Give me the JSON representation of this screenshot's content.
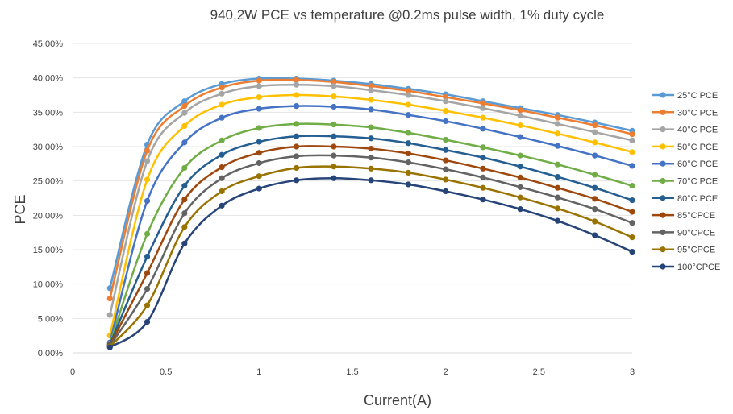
{
  "chart_data": {
    "type": "line",
    "title": "940,2W PCE vs temperature @0.2ms pulse width, 1% duty cycle",
    "xlabel": "Current(A)",
    "ylabel": "PCE",
    "xlim": [
      0,
      3
    ],
    "ylim": [
      0,
      0.45
    ],
    "x_ticks": [
      "0",
      "0.5",
      "1",
      "1.5",
      "2",
      "2.5",
      "3"
    ],
    "y_ticks": [
      "0.00%",
      "5.00%",
      "10.00%",
      "15.00%",
      "20.00%",
      "25.00%",
      "30.00%",
      "35.00%",
      "40.00%",
      "45.00%"
    ],
    "grid": "horizontal",
    "legend_position": "right",
    "x": [
      0.2,
      0.4,
      0.6,
      0.8,
      1.0,
      1.2,
      1.4,
      1.6,
      1.8,
      2.0,
      2.2,
      2.4,
      2.6,
      2.8,
      3.0
    ],
    "series": [
      {
        "name": "25°C PCE",
        "color": "#5b9bd5",
        "values": [
          0.094,
          0.303,
          0.366,
          0.391,
          0.399,
          0.399,
          0.396,
          0.391,
          0.384,
          0.376,
          0.366,
          0.356,
          0.346,
          0.335,
          0.323
        ]
      },
      {
        "name": "30°C PCE",
        "color": "#ed7d31",
        "values": [
          0.079,
          0.294,
          0.359,
          0.386,
          0.396,
          0.397,
          0.394,
          0.388,
          0.381,
          0.372,
          0.363,
          0.353,
          0.342,
          0.331,
          0.318
        ]
      },
      {
        "name": "40°C PCE",
        "color": "#a5a5a5",
        "values": [
          0.055,
          0.279,
          0.349,
          0.377,
          0.388,
          0.39,
          0.388,
          0.382,
          0.375,
          0.366,
          0.356,
          0.345,
          0.333,
          0.321,
          0.309
        ]
      },
      {
        "name": "50°C PCE",
        "color": "#ffc000",
        "values": [
          0.025,
          0.252,
          0.33,
          0.361,
          0.372,
          0.375,
          0.373,
          0.368,
          0.361,
          0.352,
          0.342,
          0.331,
          0.319,
          0.306,
          0.292
        ]
      },
      {
        "name": "60°C PCE",
        "color": "#4472c4",
        "values": [
          0.015,
          0.221,
          0.306,
          0.342,
          0.355,
          0.359,
          0.358,
          0.354,
          0.346,
          0.337,
          0.326,
          0.314,
          0.301,
          0.287,
          0.272
        ]
      },
      {
        "name": "70°C PCE",
        "color": "#70ad47",
        "values": [
          0.013,
          0.173,
          0.269,
          0.309,
          0.327,
          0.333,
          0.332,
          0.328,
          0.32,
          0.31,
          0.299,
          0.287,
          0.274,
          0.259,
          0.243
        ]
      },
      {
        "name": "80°C PCE",
        "color": "#255e91",
        "values": [
          0.012,
          0.14,
          0.243,
          0.288,
          0.307,
          0.315,
          0.315,
          0.312,
          0.305,
          0.295,
          0.284,
          0.271,
          0.256,
          0.24,
          0.222
        ]
      },
      {
        "name": "85°CPCE",
        "color": "#9e480e",
        "values": [
          0.011,
          0.116,
          0.223,
          0.27,
          0.291,
          0.3,
          0.3,
          0.297,
          0.29,
          0.28,
          0.268,
          0.255,
          0.24,
          0.224,
          0.205
        ]
      },
      {
        "name": "90°CPCE",
        "color": "#636363",
        "values": [
          0.01,
          0.093,
          0.203,
          0.254,
          0.276,
          0.286,
          0.287,
          0.284,
          0.277,
          0.267,
          0.255,
          0.241,
          0.226,
          0.209,
          0.189
        ]
      },
      {
        "name": "95°CPCE",
        "color": "#997300",
        "values": [
          0.009,
          0.069,
          0.183,
          0.235,
          0.257,
          0.269,
          0.271,
          0.268,
          0.262,
          0.252,
          0.24,
          0.226,
          0.21,
          0.191,
          0.168
        ]
      },
      {
        "name": "100°CPCE",
        "color": "#264478",
        "values": [
          0.008,
          0.045,
          0.159,
          0.214,
          0.239,
          0.251,
          0.254,
          0.251,
          0.245,
          0.235,
          0.223,
          0.209,
          0.192,
          0.171,
          0.147
        ]
      }
    ]
  }
}
